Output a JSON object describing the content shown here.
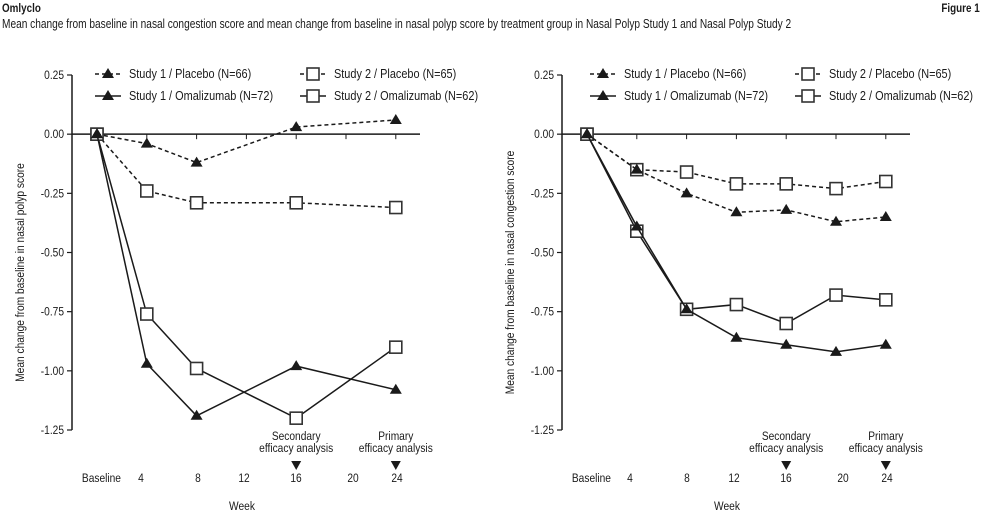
{
  "header": {
    "brand": "Omlyclo",
    "figure_label": "Figure 1",
    "subtitle": "Mean change from baseline in nasal congestion score and mean change from baseline in nasal polyp score by treatment group in Nasal Polyp Study 1 and Nasal Polyp Study 2"
  },
  "chart_data": [
    {
      "type": "line",
      "title": "",
      "xlabel": "Week",
      "ylabel": "Mean change from baseline in nasal polyp score",
      "ylim": [
        -1.25,
        0.25
      ],
      "yticks": [
        "0.25",
        "0.00",
        "-0.25",
        "-0.50",
        "-0.75",
        "-1.00",
        "-1.25"
      ],
      "ytick_values": [
        0.25,
        0.0,
        -0.25,
        -0.5,
        -0.75,
        -1.0,
        -1.25
      ],
      "x_tick_weeks": [
        0,
        4,
        8,
        12,
        16,
        20,
        24
      ],
      "x_tick_labels": [
        "Baseline",
        "4",
        "8",
        "12",
        "16",
        "20",
        "24"
      ],
      "grid": false,
      "legend_position": "top",
      "annotations": [
        {
          "week": 16,
          "line1": "Secondary",
          "line2": "efficacy analysis"
        },
        {
          "week": 24,
          "line1": "Primary",
          "line2": "efficacy analysis"
        }
      ],
      "series": [
        {
          "name": "Study 1 / Placebo (N=66)",
          "marker": "triangle",
          "dashed": true,
          "x": [
            0,
            4,
            8,
            16,
            24
          ],
          "values": [
            0.0,
            -0.04,
            -0.12,
            0.03,
            0.06
          ]
        },
        {
          "name": "Study 2 / Placebo (N=65)",
          "marker": "square",
          "dashed": true,
          "x": [
            0,
            4,
            8,
            16,
            24
          ],
          "values": [
            0.0,
            -0.24,
            -0.29,
            -0.29,
            -0.31
          ]
        },
        {
          "name": "Study 1 / Omalizumab (N=72)",
          "marker": "triangle",
          "dashed": false,
          "x": [
            0,
            4,
            8,
            16,
            24
          ],
          "values": [
            0.0,
            -0.97,
            -1.19,
            -0.98,
            -1.08
          ]
        },
        {
          "name": "Study 2 / Omalizumab (N=62)",
          "marker": "square",
          "dashed": false,
          "x": [
            0,
            4,
            8,
            16,
            24
          ],
          "values": [
            0.0,
            -0.76,
            -0.99,
            -1.2,
            -0.9
          ]
        }
      ]
    },
    {
      "type": "line",
      "title": "",
      "xlabel": "Week",
      "ylabel": "Mean change from baseline in nasal congestion score",
      "ylim": [
        -1.25,
        0.25
      ],
      "yticks": [
        "0.25",
        "0.00",
        "-0.25",
        "-0.50",
        "-0.75",
        "-1.00",
        "-1.25"
      ],
      "ytick_values": [
        0.25,
        0.0,
        -0.25,
        -0.5,
        -0.75,
        -1.0,
        -1.25
      ],
      "x_tick_weeks": [
        0,
        4,
        8,
        12,
        16,
        20,
        24
      ],
      "x_tick_labels": [
        "Baseline",
        "4",
        "8",
        "12",
        "16",
        "20",
        "24"
      ],
      "grid": false,
      "legend_position": "top",
      "annotations": [
        {
          "week": 16,
          "line1": "Secondary",
          "line2": "efficacy analysis"
        },
        {
          "week": 24,
          "line1": "Primary",
          "line2": "efficacy analysis"
        }
      ],
      "series": [
        {
          "name": "Study 1 / Placebo (N=66)",
          "marker": "triangle",
          "dashed": true,
          "x": [
            0,
            4,
            8,
            12,
            16,
            20,
            24
          ],
          "values": [
            0.0,
            -0.15,
            -0.25,
            -0.33,
            -0.32,
            -0.37,
            -0.35
          ]
        },
        {
          "name": "Study 2 / Placebo (N=65)",
          "marker": "square",
          "dashed": true,
          "x": [
            0,
            4,
            8,
            12,
            16,
            20,
            24
          ],
          "values": [
            0.0,
            -0.15,
            -0.16,
            -0.21,
            -0.21,
            -0.23,
            -0.2
          ]
        },
        {
          "name": "Study 1 / Omalizumab (N=72)",
          "marker": "triangle",
          "dashed": false,
          "x": [
            0,
            4,
            8,
            12,
            16,
            20,
            24
          ],
          "values": [
            0.0,
            -0.39,
            -0.74,
            -0.86,
            -0.89,
            -0.92,
            -0.89
          ]
        },
        {
          "name": "Study 2 / Omalizumab (N=62)",
          "marker": "square",
          "dashed": false,
          "x": [
            0,
            4,
            8,
            12,
            16,
            20,
            24
          ],
          "values": [
            0.0,
            -0.41,
            -0.74,
            -0.72,
            -0.8,
            -0.68,
            -0.7
          ]
        }
      ]
    }
  ]
}
